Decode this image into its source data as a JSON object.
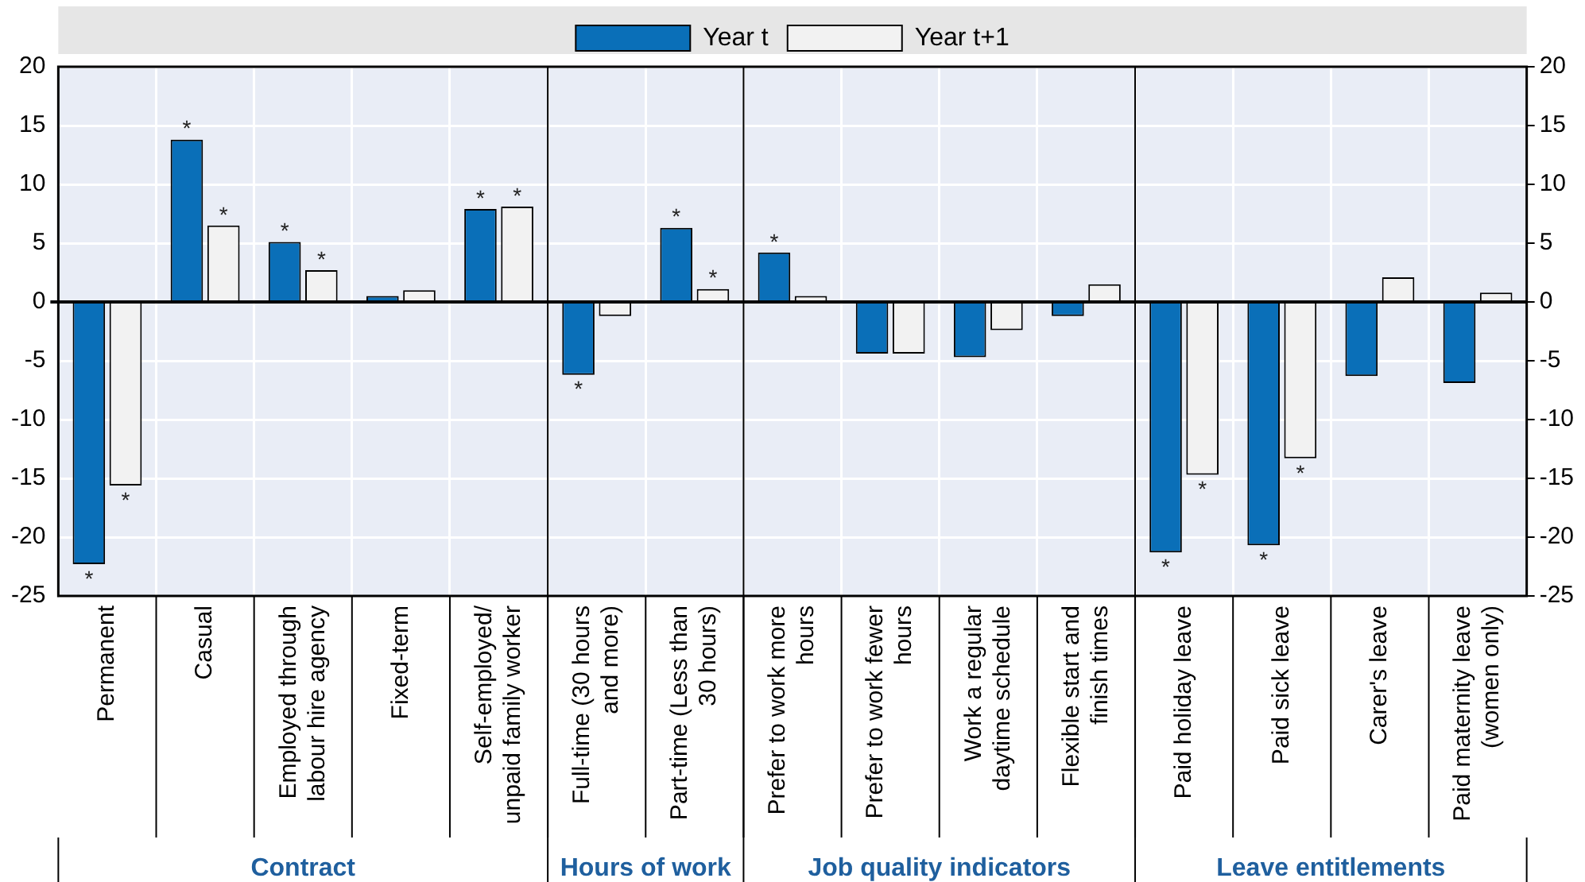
{
  "chart_data": {
    "type": "bar",
    "categories": [
      "Permanent",
      "Casual",
      "Employed through labour hire agency",
      "Fixed-term",
      "Self-employed/ unpaid family worker",
      "Full-time (30 hours and more)",
      "Part-time (Less than 30 hours)",
      "Prefer to work more hours",
      "Prefer to work fewer hours",
      "Work a regular daytime schedule",
      "Flexible start and finish times",
      "Paid holiday leave",
      "Paid sick leave",
      "Carer's leave",
      "Paid maternity leave (women only)"
    ],
    "series": [
      {
        "name": "Year t",
        "color": "#0a6fb8",
        "values": [
          -22.3,
          13.8,
          5.1,
          0.5,
          7.9,
          -6.2,
          6.3,
          4.2,
          -4.4,
          -4.7,
          -1.2,
          -21.3,
          -20.7,
          -6.3,
          -6.9
        ],
        "value_labels": [
          "*",
          "*",
          "*",
          null,
          "*",
          "*",
          "*",
          "*",
          null,
          null,
          null,
          "*",
          "*",
          null,
          null
        ]
      },
      {
        "name": "Year t+1",
        "color": "#f2f2f2",
        "values": [
          -15.6,
          6.5,
          2.7,
          1.0,
          8.1,
          -1.2,
          1.1,
          0.5,
          -4.4,
          -2.4,
          1.5,
          -14.7,
          -13.3,
          2.1,
          0.8
        ],
        "value_labels": [
          "*",
          "*",
          "*",
          null,
          "*",
          null,
          "*",
          null,
          null,
          null,
          null,
          "*",
          "*",
          null,
          null
        ]
      }
    ],
    "ylim": [
      -25,
      20
    ],
    "yticks": [
      -25,
      -20,
      -15,
      -10,
      -5,
      0,
      5,
      10,
      15,
      20
    ],
    "y2lim": [
      -25,
      20
    ],
    "y2ticks": [
      -25,
      -20,
      -15,
      -10,
      -5,
      0,
      5,
      10,
      15,
      20
    ],
    "grid": true,
    "legend": "top",
    "annotations": [
      "Contract",
      "Hours of work",
      "Job quality indicators",
      "Leave entitlements"
    ]
  }
}
